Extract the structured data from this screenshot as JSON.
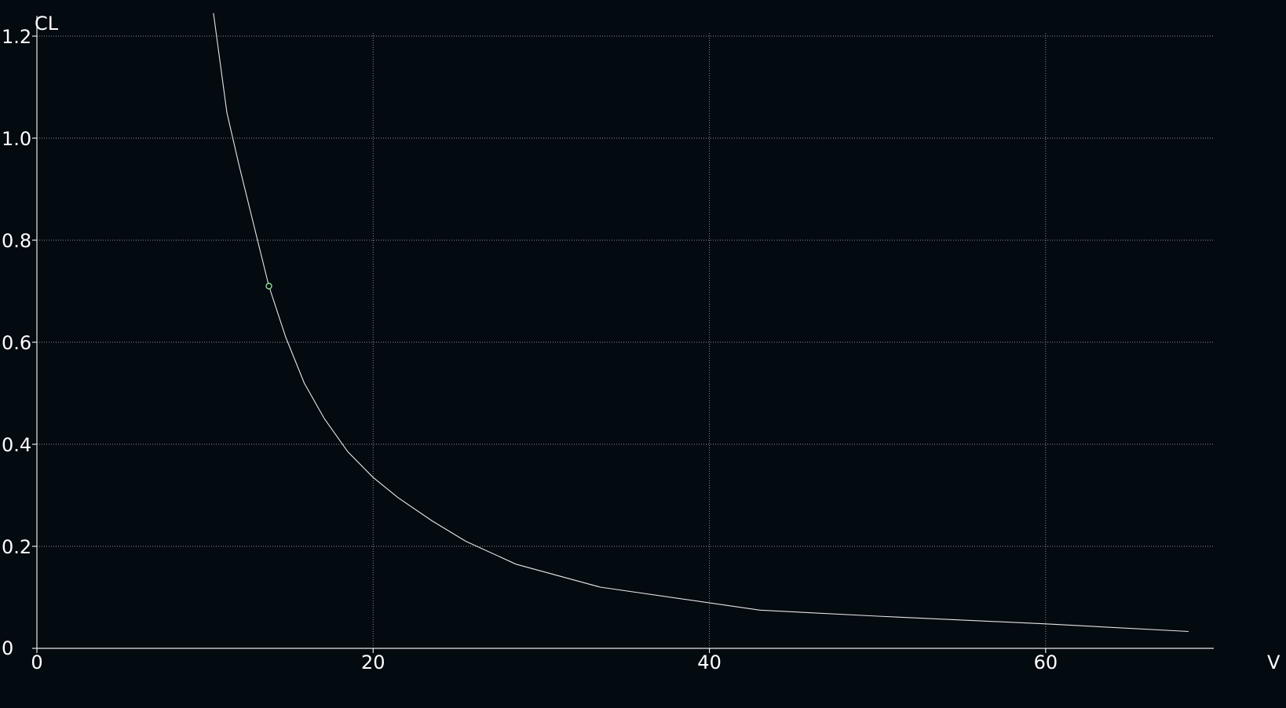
{
  "chart_data": {
    "type": "line",
    "xlabel": "V",
    "ylabel": "CL",
    "xlim": [
      0,
      70
    ],
    "ylim": [
      0,
      1.24
    ],
    "x_ticks": [
      0,
      20,
      40,
      60
    ],
    "x_tick_labels": [
      "0",
      "20",
      "40",
      "60"
    ],
    "y_ticks": [
      0,
      0.2,
      0.4,
      0.6,
      0.8,
      1.0,
      1.2
    ],
    "y_tick_labels": [
      "0",
      "0.2",
      "0.4",
      "0.6",
      "0.8",
      "1.0",
      "1.2"
    ],
    "grid": true,
    "colors": {
      "background": "#030a10",
      "curve": "#e6e6e6",
      "marker": "#8fe08f",
      "grid": "#8a8f94",
      "axis": "#e8e8e8",
      "text": "#ffffff"
    },
    "series": [
      {
        "x": [
          10.5,
          11.3,
          12.0,
          12.9,
          13.8,
          14.8,
          15.9,
          17.1,
          18.5,
          20.0,
          21.5,
          23.5,
          25.5,
          28.5,
          33.5,
          43.0,
          50.0,
          60.0,
          68.5
        ],
        "y": [
          1.245,
          1.05,
          0.95,
          0.83,
          0.71,
          0.61,
          0.52,
          0.45,
          0.385,
          0.335,
          0.295,
          0.25,
          0.21,
          0.165,
          0.12,
          0.075,
          0.063,
          0.048,
          0.033
        ]
      }
    ],
    "marker_point": {
      "x": 13.8,
      "y": 0.71
    }
  }
}
